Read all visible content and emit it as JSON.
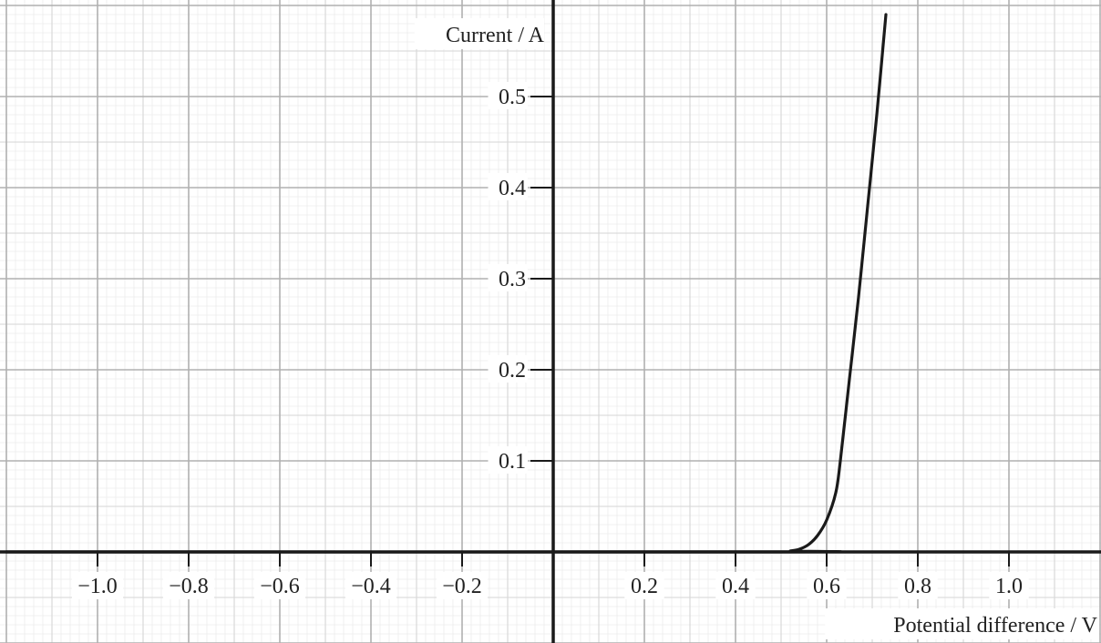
{
  "chart_data": {
    "type": "line",
    "xlabel": "Potential difference / V",
    "ylabel": "Current / A",
    "xlim": [
      -1.2,
      1.2
    ],
    "ylim": [
      -0.2,
      0.6
    ],
    "x_ticks": [
      -1.0,
      -0.8,
      -0.6,
      -0.4,
      -0.2,
      0.2,
      0.4,
      0.6,
      0.8,
      1.0
    ],
    "x_tick_labels": [
      "−1.0",
      "−0.8",
      "−0.6",
      "−0.4",
      "−0.2",
      "0.2",
      "0.4",
      "0.6",
      "0.8",
      "1.0"
    ],
    "y_ticks": [
      0.1,
      0.2,
      0.3,
      0.4,
      0.5
    ],
    "y_tick_labels": [
      "0.1",
      "0.2",
      "0.3",
      "0.4",
      "0.5"
    ],
    "grid": true,
    "series": [
      {
        "x": [
          -1.2,
          0.5,
          0.52,
          0.54,
          0.56,
          0.58,
          0.6,
          0.62,
          0.63,
          0.65,
          0.67,
          0.69,
          0.71,
          0.73
        ],
        "y": [
          0.0,
          0.0,
          0.001,
          0.003,
          0.008,
          0.018,
          0.035,
          0.065,
          0.1,
          0.19,
          0.28,
          0.38,
          0.48,
          0.59
        ]
      }
    ],
    "colors": {
      "curve": "#1a1a1a",
      "axes": "#1a1a1a",
      "major_grid": "#b0b0b0",
      "minor_grid": "#d6d6d6",
      "fine_grid": "#ececec"
    }
  }
}
